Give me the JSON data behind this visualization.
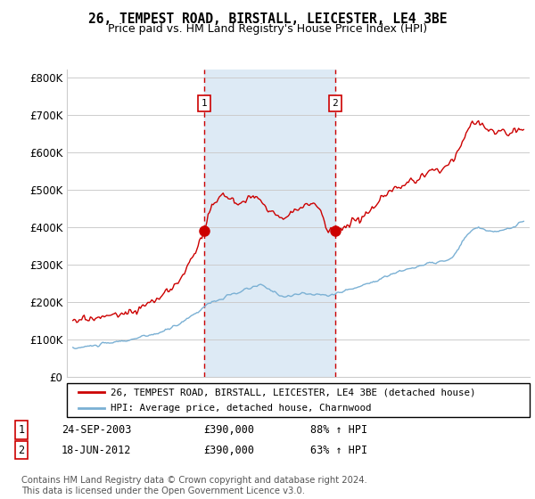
{
  "title": "26, TEMPEST ROAD, BIRSTALL, LEICESTER, LE4 3BE",
  "subtitle": "Price paid vs. HM Land Registry's House Price Index (HPI)",
  "ylabel_ticks": [
    "£0",
    "£100K",
    "£200K",
    "£300K",
    "£400K",
    "£500K",
    "£600K",
    "£700K",
    "£800K"
  ],
  "ytick_values": [
    0,
    100000,
    200000,
    300000,
    400000,
    500000,
    600000,
    700000,
    800000
  ],
  "ylim": [
    0,
    820000
  ],
  "sale1_date": "24-SEP-2003",
  "sale1_price": 390000,
  "sale1_hpi": "88% ↑ HPI",
  "sale2_date": "18-JUN-2012",
  "sale2_price": 390000,
  "sale2_hpi": "63% ↑ HPI",
  "legend_line1": "26, TEMPEST ROAD, BIRSTALL, LEICESTER, LE4 3BE (detached house)",
  "legend_line2": "HPI: Average price, detached house, Charnwood",
  "footer": "Contains HM Land Registry data © Crown copyright and database right 2024.\nThis data is licensed under the Open Government Licence v3.0.",
  "sale1_x": 2003.73,
  "sale2_x": 2012.46,
  "property_color": "#cc0000",
  "hpi_color": "#7ab0d4",
  "vline_color": "#cc0000",
  "bg_shade_color": "#ddeaf5",
  "marker_color": "#cc0000",
  "grid_color": "#cccccc"
}
